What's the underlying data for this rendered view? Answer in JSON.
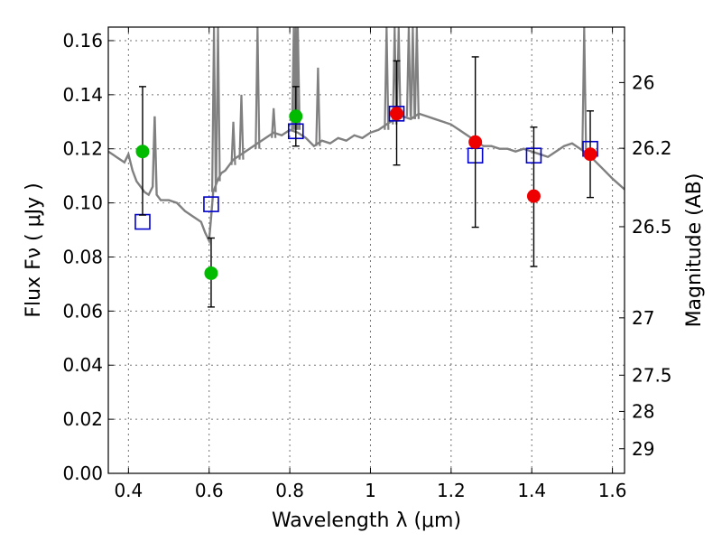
{
  "chart_data": {
    "type": "scatter",
    "xlabel": "Wavelength  λ (μm)",
    "ylabel": "Flux  Fν  ( μJy )",
    "y2label": "Magnitude (AB)",
    "xlim": [
      0.35,
      1.63
    ],
    "ylim": [
      0.0,
      0.165
    ],
    "grid": true,
    "x_ticks": [
      0.4,
      0.6,
      0.8,
      1.0,
      1.2,
      1.4,
      1.6
    ],
    "x_tick_labels": [
      "0.4",
      "0.6",
      "0.8",
      "1",
      "1.2",
      "1.4",
      "1.6"
    ],
    "y_ticks": [
      0.0,
      0.02,
      0.04,
      0.06,
      0.08,
      0.1,
      0.12,
      0.14,
      0.16
    ],
    "y_tick_labels": [
      "0.00",
      "0.02",
      "0.04",
      "0.06",
      "0.08",
      "0.10",
      "0.12",
      "0.14",
      "0.16"
    ],
    "y2_ticks": [
      {
        "label": "26",
        "flux": 0.1445
      },
      {
        "label": "26.2",
        "flux": 0.1202
      },
      {
        "label": "26.5",
        "flux": 0.0912
      },
      {
        "label": "27",
        "flux": 0.0575
      },
      {
        "label": "27.5",
        "flux": 0.0363
      },
      {
        "label": "28",
        "flux": 0.0229
      },
      {
        "label": "29",
        "flux": 0.0091
      }
    ],
    "series": [
      {
        "name": "model spectrum",
        "kind": "line",
        "color": "#808080",
        "x": [
          0.35,
          0.37,
          0.39,
          0.4,
          0.41,
          0.42,
          0.43,
          0.44,
          0.45,
          0.46,
          0.465,
          0.47,
          0.48,
          0.5,
          0.52,
          0.54,
          0.56,
          0.58,
          0.59,
          0.6,
          0.605,
          0.61,
          0.62,
          0.63,
          0.64,
          0.65,
          0.66,
          0.68,
          0.7,
          0.72,
          0.74,
          0.76,
          0.78,
          0.8,
          0.82,
          0.84,
          0.86,
          0.88,
          0.9,
          0.92,
          0.94,
          0.96,
          0.98,
          1.0,
          1.02,
          1.04,
          1.06,
          1.08,
          1.1,
          1.12,
          1.14,
          1.16,
          1.18,
          1.2,
          1.22,
          1.24,
          1.26,
          1.28,
          1.3,
          1.32,
          1.34,
          1.36,
          1.38,
          1.4,
          1.42,
          1.44,
          1.46,
          1.48,
          1.5,
          1.52,
          1.54,
          1.56,
          1.58,
          1.6,
          1.63
        ],
        "y": [
          0.119,
          0.117,
          0.115,
          0.118,
          0.112,
          0.108,
          0.106,
          0.104,
          0.103,
          0.106,
          0.132,
          0.103,
          0.101,
          0.101,
          0.1,
          0.097,
          0.095,
          0.093,
          0.089,
          0.086,
          0.095,
          0.104,
          0.108,
          0.111,
          0.112,
          0.114,
          0.116,
          0.118,
          0.12,
          0.122,
          0.124,
          0.126,
          0.125,
          0.127,
          0.126,
          0.124,
          0.121,
          0.123,
          0.122,
          0.124,
          0.123,
          0.125,
          0.124,
          0.126,
          0.127,
          0.129,
          0.131,
          0.132,
          0.131,
          0.133,
          0.132,
          0.131,
          0.13,
          0.129,
          0.127,
          0.125,
          0.123,
          0.121,
          0.121,
          0.12,
          0.12,
          0.119,
          0.12,
          0.119,
          0.118,
          0.117,
          0.119,
          0.121,
          0.122,
          0.12,
          0.118,
          0.115,
          0.112,
          0.109,
          0.105
        ]
      },
      {
        "name": "emission spikes",
        "kind": "spikes",
        "color": "#808080",
        "x": [
          0.612,
          0.622,
          0.66,
          0.68,
          0.72,
          0.76,
          0.81,
          0.815,
          0.82,
          0.87,
          1.04,
          1.06,
          1.07,
          1.095,
          1.105,
          1.115,
          1.53
        ],
        "y": [
          0.165,
          0.165,
          0.13,
          0.14,
          0.165,
          0.135,
          0.165,
          0.165,
          0.165,
          0.15,
          0.165,
          0.165,
          0.165,
          0.165,
          0.165,
          0.165,
          0.165
        ]
      },
      {
        "name": "model photometry",
        "kind": "squares",
        "color": "#0000cc",
        "x": [
          0.435,
          0.605,
          0.815,
          1.065,
          1.26,
          1.405,
          1.545
        ],
        "y": [
          0.093,
          0.0995,
          0.1265,
          0.133,
          0.1175,
          0.1175,
          0.12
        ]
      },
      {
        "name": "observed (green)",
        "kind": "points",
        "color": "#00bb00",
        "x": [
          0.435,
          0.605,
          0.815
        ],
        "y": [
          0.119,
          0.074,
          0.132
        ],
        "err_low": [
          0.0955,
          0.0615,
          0.121
        ],
        "err_high": [
          0.143,
          0.087,
          0.143
        ]
      },
      {
        "name": "observed (red)",
        "kind": "points",
        "color": "#ee0000",
        "x": [
          1.065,
          1.26,
          1.405,
          1.545
        ],
        "y": [
          0.133,
          0.1225,
          0.1025,
          0.118
        ],
        "err_low": [
          0.114,
          0.091,
          0.0765,
          0.102
        ],
        "err_high": [
          0.1525,
          0.154,
          0.128,
          0.134
        ]
      }
    ]
  }
}
